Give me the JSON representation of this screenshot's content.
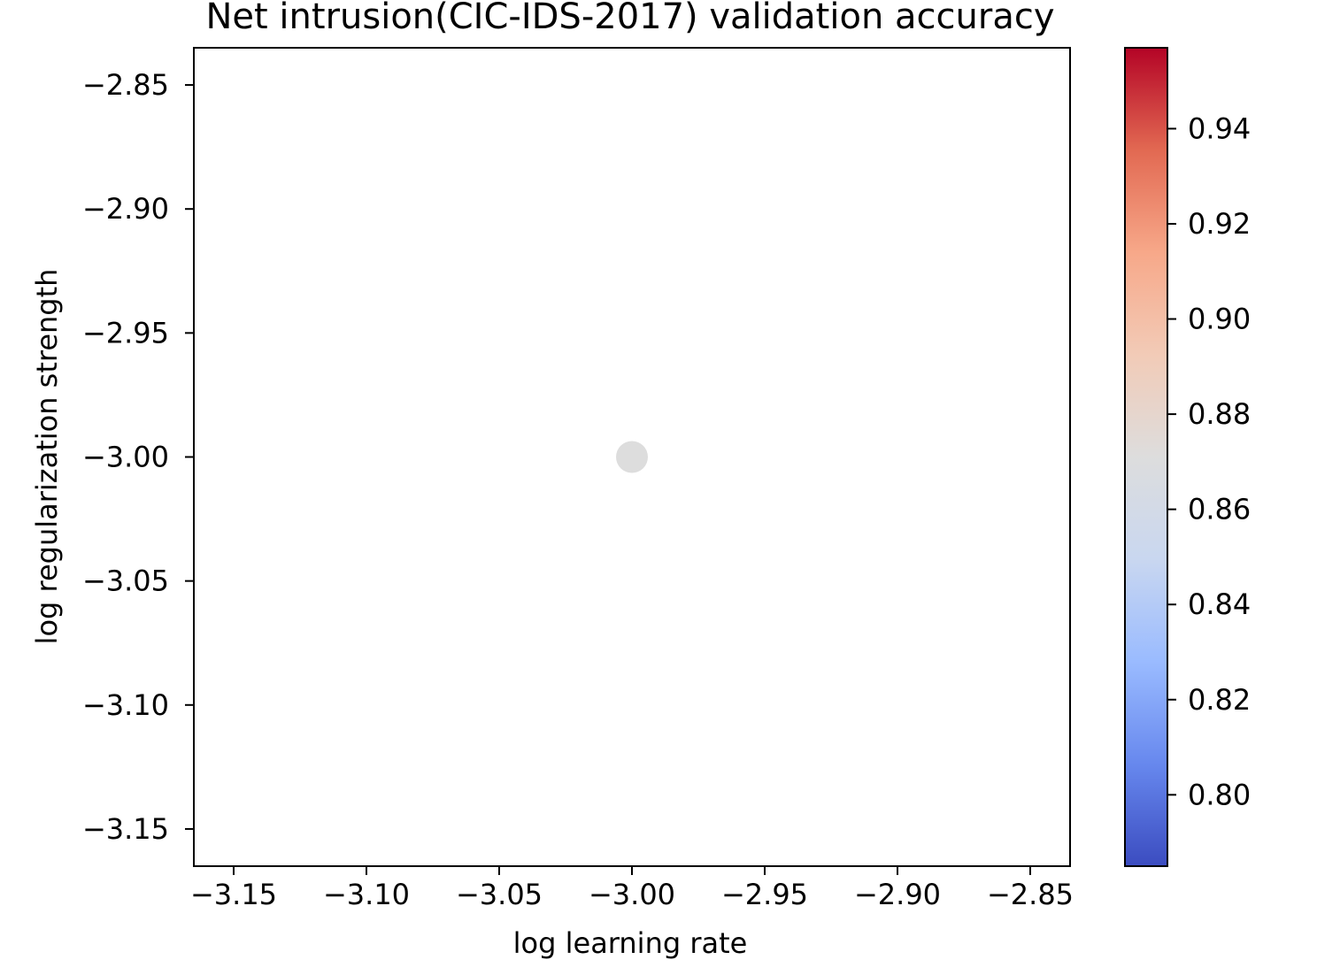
{
  "chart_data": {
    "type": "scatter",
    "title": "Net intrusion(CIC-IDS-2017) validation accuracy",
    "xlabel": "log learning rate",
    "ylabel": "log regularization strength",
    "xlim": [
      -3.165,
      -2.835
    ],
    "ylim": [
      -3.165,
      -2.835
    ],
    "xticks": [
      -3.15,
      -3.1,
      -3.05,
      -3.0,
      -2.95,
      -2.9,
      -2.85
    ],
    "xtick_labels": [
      "−3.15",
      "−3.10",
      "−3.05",
      "−3.00",
      "−2.95",
      "−2.90",
      "−2.85"
    ],
    "yticks": [
      -2.85,
      -2.9,
      -2.95,
      -3.0,
      -3.05,
      -3.1,
      -3.15
    ],
    "ytick_labels": [
      "−2.85",
      "−2.90",
      "−2.95",
      "−3.00",
      "−3.05",
      "−3.10",
      "−3.15"
    ],
    "points": [
      {
        "x": -3.0,
        "y": -3.0,
        "value": 0.871
      }
    ],
    "colorbar": {
      "colormap": "coolwarm",
      "range": [
        0.785,
        0.957
      ],
      "ticks": [
        0.8,
        0.82,
        0.84,
        0.86,
        0.88,
        0.9,
        0.92,
        0.94
      ],
      "tick_labels": [
        "0.80",
        "0.82",
        "0.84",
        "0.86",
        "0.88",
        "0.90",
        "0.92",
        "0.94"
      ],
      "colors": [
        "#3b4cc0",
        "#6788ee",
        "#9abbff",
        "#c9d7f0",
        "#dddddd",
        "#f2cbb7",
        "#f7a889",
        "#e26952",
        "#b40426"
      ]
    },
    "grid": false,
    "legend": "none"
  }
}
